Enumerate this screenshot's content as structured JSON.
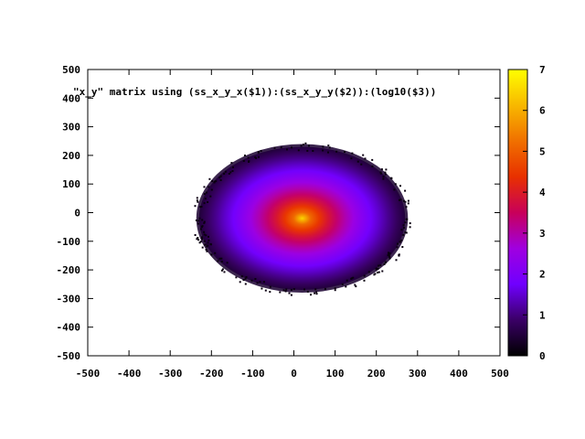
{
  "chart_data": {
    "type": "heatmap",
    "title": "",
    "xlabel": "",
    "ylabel": "",
    "xlim": [
      -500,
      500
    ],
    "ylim": [
      -500,
      500
    ],
    "x_ticks": [
      "-500",
      "-400",
      "-300",
      "-200",
      "-100",
      "0",
      "100",
      "200",
      "300",
      "400",
      "500"
    ],
    "y_ticks": [
      "-500",
      "-400",
      "-300",
      "-200",
      "-100",
      "0",
      "100",
      "200",
      "300",
      "400",
      "500"
    ],
    "series_label": "\"x_y\" matrix using (ss_x_y_x($1)):(ss_x_y_y($2)):(log10($3))",
    "distribution": {
      "shape": "ellipse",
      "center": [
        20,
        -20
      ],
      "x_half_width": 250,
      "y_half_height": 250,
      "peak_value": 6.5,
      "edge_value": 0.5
    },
    "colorbar": {
      "range": [
        0,
        7
      ],
      "ticks": [
        "0",
        "1",
        "2",
        "3",
        "4",
        "5",
        "6",
        "7"
      ],
      "palette": [
        "#000000",
        "#3a0066",
        "#7000ff",
        "#a000e0",
        "#c8005a",
        "#e83000",
        "#f07000",
        "#f8b800",
        "#ffff00"
      ]
    },
    "grid": false,
    "legend_position": "top-left"
  }
}
